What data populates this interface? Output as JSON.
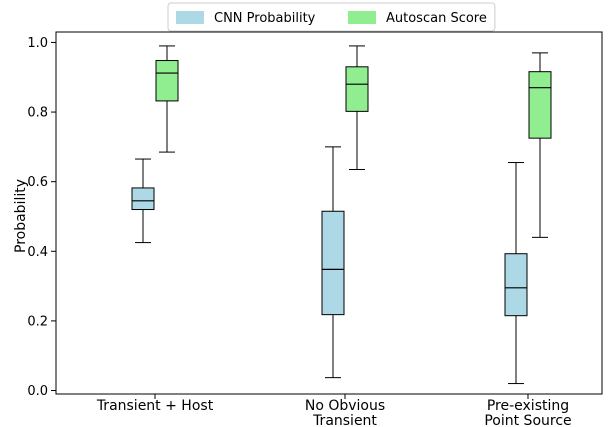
{
  "chart_data": {
    "type": "boxplot",
    "title": "",
    "xlabel": "",
    "ylabel": "Probability",
    "ylim": [
      -0.01,
      1.03
    ],
    "yticks": [
      0.0,
      0.2,
      0.4,
      0.6,
      0.8,
      1.0
    ],
    "ytick_labels": [
      "0.0",
      "0.2",
      "0.4",
      "0.6",
      "0.8",
      "1.0"
    ],
    "grid": false,
    "legend_position": "top-center",
    "categories": [
      {
        "lines": [
          "Transient + Host"
        ]
      },
      {
        "lines": [
          "No Obvious",
          "Transient"
        ]
      },
      {
        "lines": [
          "Pre-existing",
          "Point Source"
        ]
      }
    ],
    "series": [
      {
        "name": "CNN Probability",
        "color": "#add8e6",
        "boxes": [
          {
            "whislo": 0.425,
            "q1": 0.52,
            "med": 0.545,
            "q3": 0.582,
            "whishi": 0.665
          },
          {
            "whislo": 0.037,
            "q1": 0.218,
            "med": 0.348,
            "q3": 0.515,
            "whishi": 0.7
          },
          {
            "whislo": 0.02,
            "q1": 0.215,
            "med": 0.295,
            "q3": 0.393,
            "whishi": 0.655
          }
        ]
      },
      {
        "name": "Autoscan Score",
        "color": "#90ee90",
        "boxes": [
          {
            "whislo": 0.685,
            "q1": 0.832,
            "med": 0.912,
            "q3": 0.948,
            "whishi": 0.99
          },
          {
            "whislo": 0.635,
            "q1": 0.802,
            "med": 0.88,
            "q3": 0.93,
            "whishi": 0.99
          },
          {
            "whislo": 0.44,
            "q1": 0.725,
            "med": 0.87,
            "q3": 0.916,
            "whishi": 0.97
          }
        ]
      }
    ]
  }
}
